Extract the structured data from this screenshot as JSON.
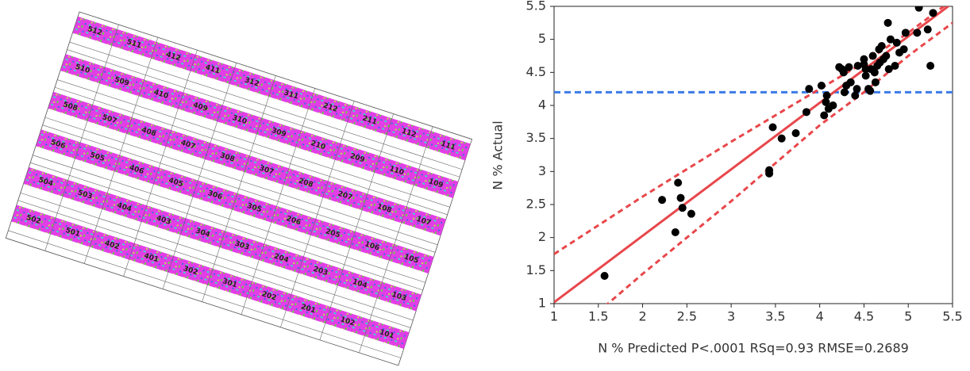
{
  "field_map": {
    "rows": [
      [
        "512",
        "511",
        "412",
        "411",
        "312",
        "311",
        "212",
        "211",
        "112",
        "111"
      ],
      [
        "510",
        "509",
        "410",
        "409",
        "310",
        "309",
        "210",
        "209",
        "110",
        "109"
      ],
      [
        "508",
        "507",
        "408",
        "407",
        "308",
        "307",
        "208",
        "207",
        "108",
        "107"
      ],
      [
        "506",
        "505",
        "406",
        "405",
        "306",
        "305",
        "206",
        "205",
        "106",
        "105"
      ],
      [
        "504",
        "503",
        "404",
        "403",
        "304",
        "303",
        "204",
        "203",
        "104",
        "103"
      ],
      [
        "502",
        "501",
        "402",
        "401",
        "302",
        "301",
        "202",
        "201",
        "102",
        "101"
      ]
    ]
  },
  "chart_data": {
    "type": "scatter",
    "x_label": "N % Predicted P<.0001 RSq=0.93 RMSE=0.2689",
    "y_label": "N % Actual",
    "xlim": [
      1,
      5.5
    ],
    "ylim": [
      1,
      5.5
    ],
    "xticks": [
      1,
      1.5,
      2,
      2.5,
      3,
      3.5,
      4,
      4.5,
      5,
      5.5
    ],
    "yticks": [
      1,
      1.5,
      2,
      2.5,
      3,
      3.5,
      4,
      4.5,
      5,
      5.5
    ],
    "series": [
      {
        "color": "#000000",
        "x": [
          1.57,
          2.22,
          2.37,
          2.4,
          2.43,
          2.45,
          2.55,
          3.43,
          3.43,
          3.47,
          3.57,
          3.73,
          3.85,
          3.88,
          4.02,
          4.05,
          4.07,
          4.08,
          4.1,
          4.15,
          4.22,
          4.25,
          4.27,
          4.28,
          4.3,
          4.33,
          4.35,
          4.4,
          4.42,
          4.43,
          4.5,
          4.52,
          4.55,
          4.57,
          4.58,
          4.6,
          4.62,
          4.63,
          4.65,
          4.67,
          4.68,
          4.7,
          4.72,
          4.75,
          4.77,
          4.78,
          4.8,
          4.85,
          4.87,
          4.9,
          4.95,
          4.97,
          5.1,
          5.12,
          5.22,
          5.25,
          5.28,
          4.5,
          4.52
        ],
        "values": [
          1.42,
          2.57,
          2.08,
          2.83,
          2.6,
          2.45,
          2.36,
          2.97,
          3.02,
          3.67,
          3.5,
          3.58,
          3.9,
          4.25,
          4.3,
          3.85,
          4.05,
          4.15,
          3.95,
          4.0,
          4.58,
          4.55,
          4.5,
          4.2,
          4.3,
          4.58,
          4.35,
          4.15,
          4.25,
          4.6,
          4.7,
          4.45,
          4.25,
          4.22,
          4.55,
          4.75,
          4.5,
          4.35,
          4.6,
          4.85,
          4.65,
          4.9,
          4.7,
          4.75,
          5.25,
          4.55,
          5.0,
          4.6,
          4.95,
          4.8,
          4.85,
          5.1,
          5.1,
          5.48,
          5.15,
          4.6,
          5.4,
          4.62,
          4.55
        ]
      }
    ],
    "fit_line": {
      "color": "#e8474b",
      "x": [
        1,
        5.5
      ],
      "values": [
        1.02,
        5.55
      ]
    },
    "confidence_bands": [
      {
        "color": "#e8474b",
        "x": [
          1,
          2,
          3,
          4,
          4.5,
          5,
          5.5
        ],
        "values": [
          1.75,
          2.62,
          3.45,
          4.25,
          4.65,
          5.1,
          5.6
        ]
      },
      {
        "color": "#e8474b",
        "x": [
          1,
          2,
          3,
          4,
          4.5,
          5,
          5.5
        ],
        "values": [
          0.3,
          1.45,
          2.55,
          3.7,
          4.2,
          4.75,
          5.25
        ]
      }
    ],
    "reference_line": {
      "value": 4.2,
      "color": "#3b7be8"
    }
  }
}
